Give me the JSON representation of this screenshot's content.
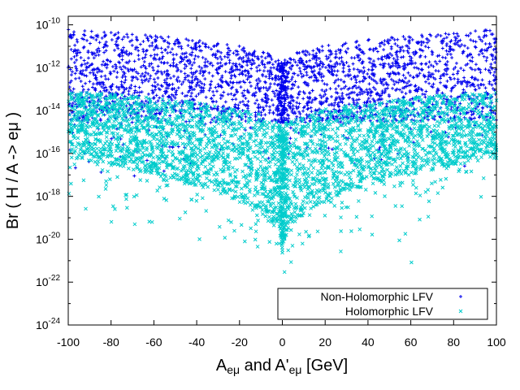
{
  "chart_data": {
    "type": "scatter",
    "xlabel_main": "A",
    "xlabel_sub1": "eμ",
    "xlabel_mid": " and A'",
    "xlabel_sub2": "eμ",
    "xlabel_end": " [GeV]",
    "ylabel": "Br ( H / A -> eμ )",
    "xlim": [
      -100,
      100
    ],
    "ylim_exponent": [
      -24,
      -9.6
    ],
    "y_scale": "log",
    "x_ticks": [
      "-100",
      "-80",
      "-60",
      "-40",
      "-20",
      "0",
      "20",
      "40",
      "60",
      "80",
      "100"
    ],
    "y_ticks": [
      {
        "base": "10",
        "exp": "-10"
      },
      {
        "base": "10",
        "exp": "-12"
      },
      {
        "base": "10",
        "exp": "-14"
      },
      {
        "base": "10",
        "exp": "-16"
      },
      {
        "base": "10",
        "exp": "-18"
      },
      {
        "base": "10",
        "exp": "-20"
      },
      {
        "base": "10",
        "exp": "-22"
      },
      {
        "base": "10",
        "exp": "-24"
      }
    ],
    "legend_position": "bottom-right",
    "series": [
      {
        "name": "Non-Holomorphic LFV",
        "color": "#0000ee",
        "marker": "+",
        "log10_band_at_edges": [
          -14.5,
          -10.2
        ],
        "log10_band_at_zero": [
          -14.6,
          -12.0
        ]
      },
      {
        "name": "Holomorphic LFV",
        "color": "#00cccc",
        "marker": "x",
        "log10_band_at_edges": [
          -16.2,
          -13.1
        ],
        "log10_band_at_zero": [
          -21.0,
          -15.0
        ]
      }
    ]
  }
}
